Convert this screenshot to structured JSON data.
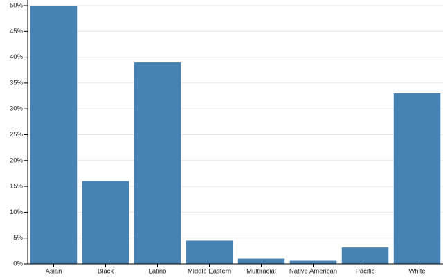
{
  "chart_data": {
    "type": "bar",
    "categories": [
      "Asian",
      "Black",
      "Latino",
      "Middle Eastern",
      "Multiracial",
      "Native American",
      "Pacific",
      "White"
    ],
    "values": [
      50,
      16,
      39,
      4.5,
      1,
      0.6,
      3.2,
      33
    ],
    "color": "#4682b4",
    "ylim": [
      0,
      50
    ],
    "yticks": [
      {
        "value": 0,
        "label": "0%"
      },
      {
        "value": 5,
        "label": "5%"
      },
      {
        "value": 10,
        "label": "10%"
      },
      {
        "value": 15,
        "label": "15%"
      },
      {
        "value": 20,
        "label": "20%"
      },
      {
        "value": 25,
        "label": "25%"
      },
      {
        "value": 30,
        "label": "30%"
      },
      {
        "value": 35,
        "label": "35%"
      },
      {
        "value": 40,
        "label": "40%"
      },
      {
        "value": 45,
        "label": "45%"
      },
      {
        "value": 50,
        "label": "50%"
      }
    ],
    "grid": true
  }
}
